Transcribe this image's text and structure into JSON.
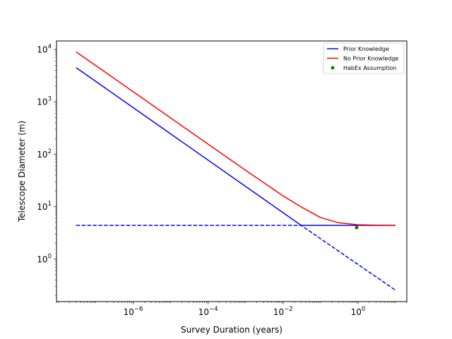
{
  "chart_data": {
    "type": "line",
    "title": "",
    "xlabel": "Survey Duration (years)",
    "ylabel": "Telescope Diameter (m)",
    "xscale": "log",
    "yscale": "log",
    "xlim": [
      9e-09,
      20
    ],
    "ylim": [
      0.155,
      14500
    ],
    "grid": false,
    "legend_position": "top-right",
    "x_ticks": [
      {
        "value": 1e-06,
        "base": "10",
        "exp": "−6"
      },
      {
        "value": 0.0001,
        "base": "10",
        "exp": "−4"
      },
      {
        "value": 0.01,
        "base": "10",
        "exp": "−2"
      },
      {
        "value": 1,
        "base": "10",
        "exp": "0"
      }
    ],
    "y_ticks": [
      {
        "value": 1,
        "base": "10",
        "exp": "0"
      },
      {
        "value": 10,
        "base": "10",
        "exp": "1"
      },
      {
        "value": 100,
        "base": "10",
        "exp": "2"
      },
      {
        "value": 1000,
        "base": "10",
        "exp": "3"
      },
      {
        "value": 10000,
        "base": "10",
        "exp": "4"
      }
    ],
    "series": [
      {
        "name": "Prior Knowledge",
        "color": "#0000ff",
        "style": "solid",
        "x": [
          3e-08,
          0.0304,
          10
        ],
        "y": [
          4500,
          4.4,
          4.4
        ]
      },
      {
        "name": "No Prior Knowledge",
        "color": "#ff0000",
        "style": "solid",
        "x": [
          3e-08,
          1e-06,
          1e-05,
          0.0001,
          0.001,
          0.01,
          0.03,
          0.1,
          0.3,
          1,
          3,
          10
        ],
        "y": [
          9000,
          1560,
          493,
          156,
          49.5,
          16.1,
          9.95,
          6.2,
          4.95,
          4.52,
          4.43,
          4.4
        ]
      },
      {
        "name": "",
        "color": "#0000ff",
        "style": "dashed",
        "x": [
          3e-08,
          0.0304,
          10
        ],
        "y": [
          4.4,
          4.4,
          0.255
        ]
      },
      {
        "name": "HabEx Assumption",
        "color": "#008000",
        "style": "marker",
        "x": [
          0.92
        ],
        "y": [
          4.0
        ]
      }
    ],
    "legend": [
      {
        "label": "Prior Knowledge",
        "color": "#0000ff",
        "kind": "line"
      },
      {
        "label": "No Prior Knowledge",
        "color": "#ff0000",
        "kind": "line"
      },
      {
        "label": "HabEx Assumption",
        "color": "#008000",
        "kind": "marker"
      }
    ]
  }
}
